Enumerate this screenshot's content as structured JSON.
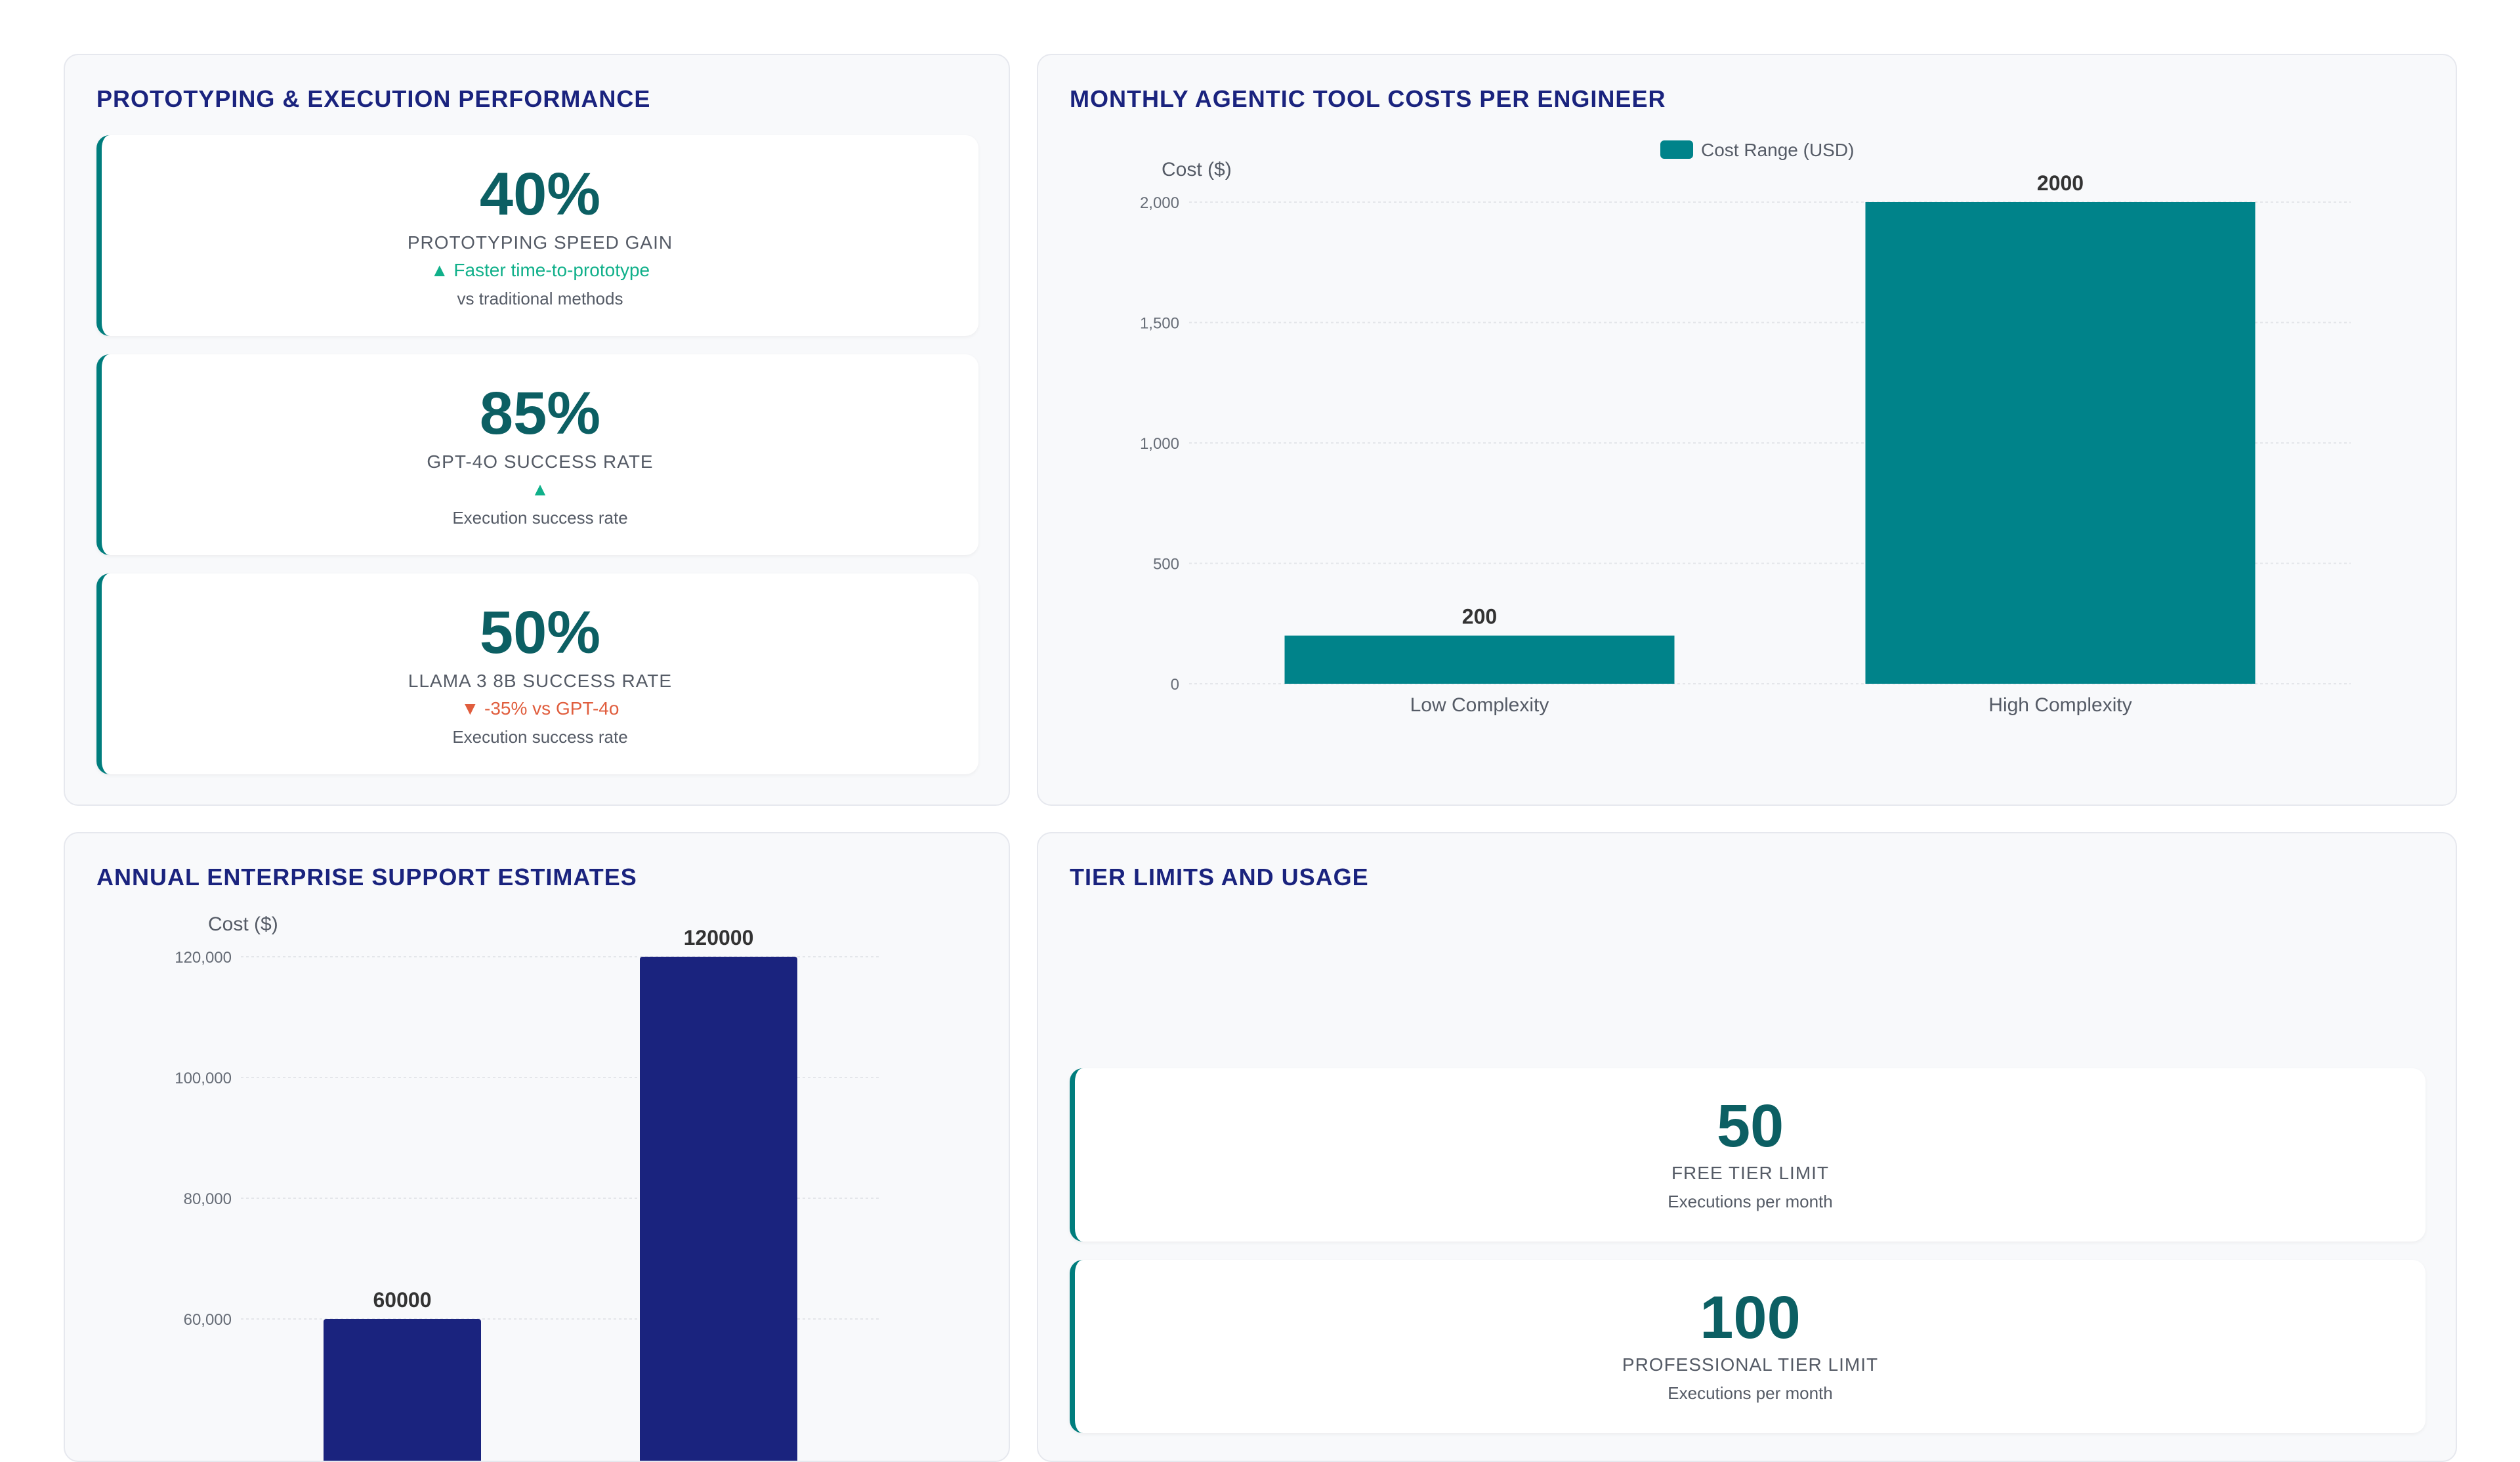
{
  "panels": {
    "performance": {
      "title": "PROTOTYPING & EXECUTION PERFORMANCE",
      "kpis": [
        {
          "value": "40%",
          "label": "PROTOTYPING SPEED GAIN",
          "trend": "▲ Faster time-to-prototype",
          "note": "vs traditional methods"
        },
        {
          "value": "85%",
          "label": "GPT-4O SUCCESS RATE",
          "trend": "▲",
          "note": "Execution success rate"
        },
        {
          "value": "50%",
          "label": "LLAMA 3 8B SUCCESS RATE",
          "trend": "▼ -35% vs GPT-4o",
          "note": "Execution success rate"
        }
      ]
    },
    "tool_costs": {
      "title": "MONTHLY AGENTIC TOOL COSTS PER ENGINEER"
    },
    "support": {
      "title": "ANNUAL ENTERPRISE SUPPORT ESTIMATES"
    },
    "tiers": {
      "title": "TIER LIMITS AND USAGE",
      "kpis": [
        {
          "value": "50",
          "label": "FREE TIER LIMIT",
          "note": "Executions per month"
        },
        {
          "value": "100",
          "label": "PROFESSIONAL TIER LIMIT",
          "note": "Executions per month"
        }
      ]
    }
  },
  "colors": {
    "teal": "#00838a",
    "navy": "#1a237e",
    "up": "#10b08a",
    "down": "#e05d3d"
  },
  "chart_data": [
    {
      "type": "bar",
      "categories": [
        "Low Complexity",
        "High Complexity"
      ],
      "series": [
        {
          "name": "Cost Range (USD)",
          "values": [
            200,
            2000
          ]
        }
      ],
      "ylabel": "Cost ($)",
      "ylim": [
        0,
        2000
      ],
      "yticks": [
        0,
        500,
        1000,
        1500,
        2000
      ],
      "ytick_labels": [
        "0",
        "500",
        "1,000",
        "1,500",
        "2,000"
      ],
      "data_labels": [
        "200",
        "2000"
      ],
      "legend": "top-center",
      "grid": true
    },
    {
      "type": "bar",
      "categories": [
        "",
        ""
      ],
      "series": [
        {
          "values": [
            60000,
            120000
          ]
        }
      ],
      "ylabel": "Cost ($)",
      "yticks": [
        60000,
        80000,
        100000,
        120000
      ],
      "ytick_labels": [
        "60,000",
        "80,000",
        "100,000",
        "120,000"
      ],
      "data_labels": [
        "60000",
        "120000"
      ],
      "grid": true
    }
  ]
}
